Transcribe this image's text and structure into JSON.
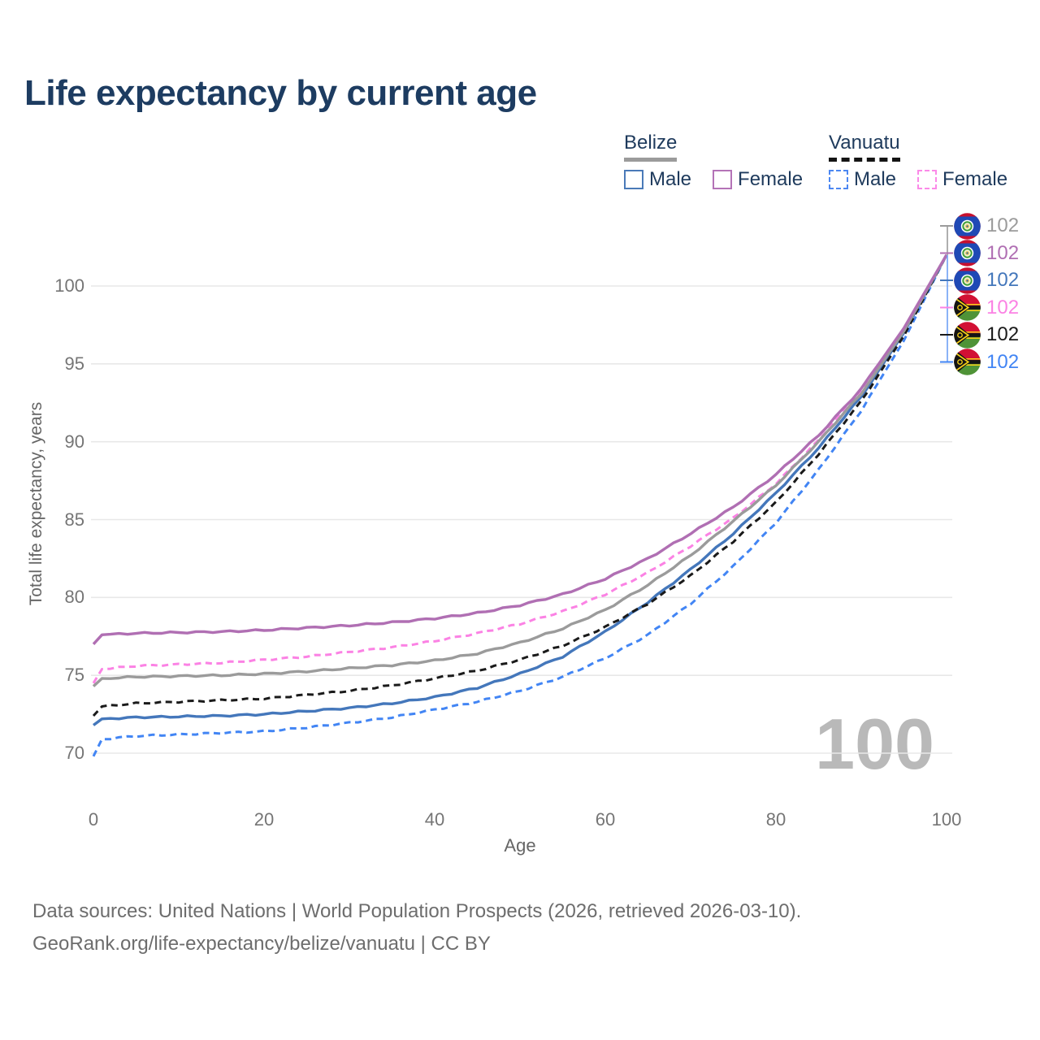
{
  "title": "Life expectancy by current age",
  "legend": {
    "groups": [
      {
        "country": "Belize",
        "line_style": "solid",
        "line_color": "#9b9b9b",
        "items": [
          {
            "label": "Male",
            "swatch_color": "#4a7ab8",
            "swatch_style": "solid"
          },
          {
            "label": "Female",
            "swatch_color": "#b473b7",
            "swatch_style": "solid"
          }
        ]
      },
      {
        "country": "Vanuatu",
        "line_style": "dashed",
        "line_color": "#141414",
        "items": [
          {
            "label": "Male",
            "swatch_color": "#4c87f2",
            "swatch_style": "dashed"
          },
          {
            "label": "Female",
            "swatch_color": "#fb8ae8",
            "swatch_style": "dashed"
          }
        ]
      }
    ]
  },
  "chart_data": {
    "type": "line",
    "title": "Life expectancy by current age",
    "xlabel": "Age",
    "ylabel": "Total life expectancy, years",
    "xlim": [
      0,
      100
    ],
    "ylim": [
      68.5,
      103.5
    ],
    "xticks": [
      0,
      20,
      40,
      60,
      80,
      100
    ],
    "yticks": [
      70,
      75,
      80,
      85,
      90,
      95,
      100
    ],
    "grid": "horizontal-only",
    "legend_position": "top-right",
    "watermark": "100",
    "x_ages": [
      0,
      1,
      5,
      10,
      15,
      20,
      25,
      30,
      35,
      40,
      45,
      50,
      55,
      60,
      65,
      70,
      75,
      80,
      85,
      90,
      95,
      100
    ],
    "series": [
      {
        "name": "Belize Total",
        "country": "Belize",
        "sex": "Total",
        "color": "#9b9b9b",
        "dash": "solid",
        "end_value_label": "102",
        "values": [
          74.3,
          74.8,
          74.9,
          74.95,
          75.0,
          75.1,
          75.25,
          75.45,
          75.65,
          75.95,
          76.4,
          77.1,
          78.0,
          79.2,
          80.8,
          82.7,
          84.9,
          87.2,
          90.0,
          93.1,
          97.1,
          102
        ]
      },
      {
        "name": "Belize Female",
        "country": "Belize",
        "sex": "Female",
        "color": "#b06fb3",
        "dash": "solid",
        "end_value_label": "102",
        "values": [
          77.0,
          77.6,
          77.7,
          77.75,
          77.8,
          77.9,
          78.05,
          78.2,
          78.4,
          78.65,
          79.0,
          79.5,
          80.2,
          81.2,
          82.5,
          84.1,
          85.8,
          87.9,
          90.4,
          93.4,
          97.3,
          102
        ]
      },
      {
        "name": "Belize Male",
        "country": "Belize",
        "sex": "Male",
        "color": "#4477bb",
        "dash": "solid",
        "end_value_label": "102",
        "values": [
          71.8,
          72.2,
          72.3,
          72.35,
          72.4,
          72.5,
          72.7,
          72.9,
          73.2,
          73.6,
          74.2,
          75.1,
          76.2,
          77.8,
          79.7,
          81.8,
          84.1,
          86.7,
          89.6,
          92.9,
          97.0,
          102
        ]
      },
      {
        "name": "Vanuatu Female",
        "country": "Vanuatu",
        "sex": "Female",
        "color": "#fb82e4",
        "dash": "dashed",
        "end_value_label": "102",
        "values": [
          74.5,
          75.4,
          75.6,
          75.7,
          75.8,
          76.0,
          76.2,
          76.5,
          76.8,
          77.2,
          77.7,
          78.3,
          79.1,
          80.2,
          81.6,
          83.3,
          85.1,
          87.3,
          90.1,
          93.3,
          97.2,
          102
        ]
      },
      {
        "name": "Vanuatu Total",
        "country": "Vanuatu",
        "sex": "Total",
        "color": "#1a1a1a",
        "dash": "dashed",
        "end_value_label": "102",
        "values": [
          72.4,
          73.0,
          73.2,
          73.3,
          73.4,
          73.5,
          73.75,
          74.0,
          74.35,
          74.8,
          75.3,
          76.0,
          76.9,
          78.1,
          79.6,
          81.4,
          83.6,
          86.1,
          89.2,
          92.6,
          96.8,
          102
        ]
      },
      {
        "name": "Vanuatu Male",
        "country": "Vanuatu",
        "sex": "Male",
        "color": "#4285f4",
        "dash": "dashed",
        "end_value_label": "102",
        "values": [
          69.8,
          70.9,
          71.1,
          71.2,
          71.3,
          71.4,
          71.65,
          71.95,
          72.3,
          72.8,
          73.3,
          74.0,
          74.9,
          76.1,
          77.6,
          79.6,
          82.0,
          84.8,
          88.2,
          92.0,
          96.5,
          102
        ]
      }
    ]
  },
  "end_labels": {
    "rows": [
      {
        "flag": "belize",
        "value": "102",
        "color": "#9b9b9b"
      },
      {
        "flag": "belize",
        "value": "102",
        "color": "#b06fb3"
      },
      {
        "flag": "belize",
        "value": "102",
        "color": "#4477bb"
      },
      {
        "flag": "vanuatu",
        "value": "102",
        "color": "#fb82e4"
      },
      {
        "flag": "vanuatu",
        "value": "102",
        "color": "#1a1a1a"
      },
      {
        "flag": "vanuatu",
        "value": "102",
        "color": "#4285f4"
      }
    ]
  },
  "footer": {
    "line1": "Data sources: United Nations | World Population Prospects (2026, retrieved 2026-03-10).",
    "line2": "GeoRank.org/life-expectancy/belize/vanuatu | CC BY"
  }
}
